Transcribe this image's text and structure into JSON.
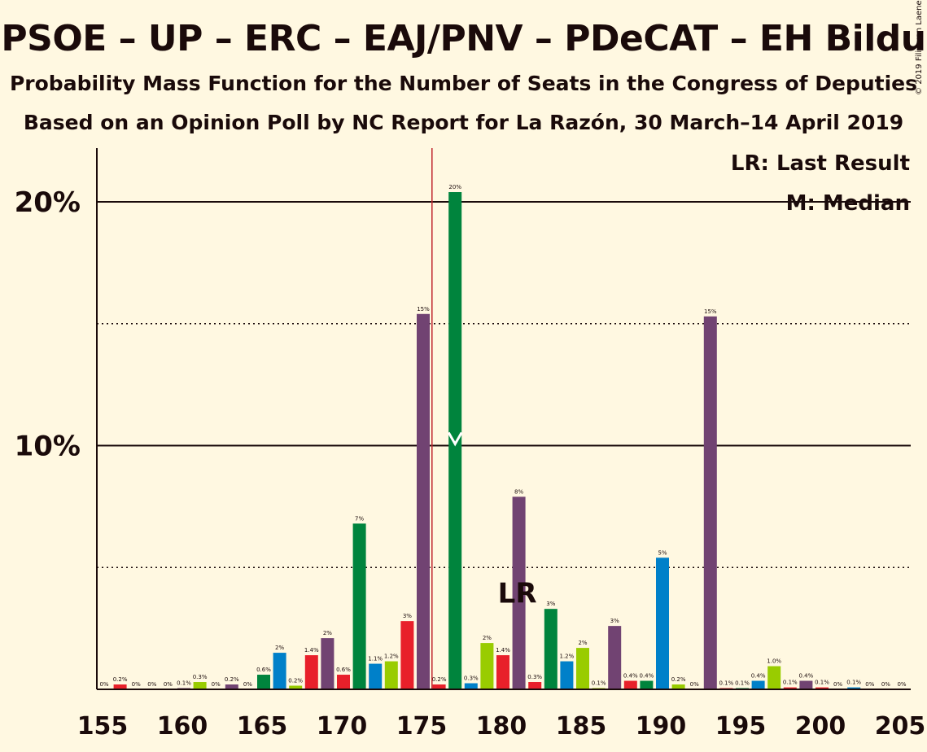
{
  "title": "PSOE – UP – ERC – EAJ/PNV – PDeCAT – EH Bildu",
  "subtitle1": "Probability Mass Function for the Number of Seats in the Congress of Deputies",
  "subtitle2": "Based on an Opinion Poll by NC Report for La Razón, 30 March–14 April 2019",
  "copyright": "© 2019 Filip van Laenen",
  "legend": {
    "lr": "LR: Last Result",
    "median": "M: Median"
  },
  "lr_label": "LR",
  "median_marker": "M",
  "colors": {
    "background": "#fff8e1",
    "red": "#e8202a",
    "green": "#00843d",
    "blue": "#0080c9",
    "lime": "#99cc00",
    "purple": "#714372",
    "lastresult_line": "#c0262d"
  },
  "chart_data": {
    "type": "bar",
    "xlim": [
      155,
      205
    ],
    "ylim": [
      0,
      22
    ],
    "y_ticks": [
      10,
      20
    ],
    "y_tick_labels": [
      "10%",
      "20%"
    ],
    "y_dotted_gridlines": [
      5,
      15
    ],
    "x_ticks": [
      155,
      160,
      165,
      170,
      175,
      180,
      185,
      190,
      195,
      200,
      205
    ],
    "last_result": 176,
    "median": 177,
    "bars": [
      {
        "x": 155,
        "value": 0,
        "label": "0%",
        "color": "red"
      },
      {
        "x": 156,
        "value": 0.2,
        "label": "0.2%",
        "color": "red"
      },
      {
        "x": 157,
        "value": 0,
        "label": "0%",
        "color": "green"
      },
      {
        "x": 158,
        "value": 0,
        "label": "0%",
        "color": "blue"
      },
      {
        "x": 159,
        "value": 0,
        "label": "0%",
        "color": "lime"
      },
      {
        "x": 160,
        "value": 0.05,
        "label": "0.1%",
        "color": "purple"
      },
      {
        "x": 161,
        "value": 0.3,
        "label": "0.3%",
        "color": "lime"
      },
      {
        "x": 162,
        "value": 0,
        "label": "0%",
        "color": "lime"
      },
      {
        "x": 163,
        "value": 0.2,
        "label": "0.2%",
        "color": "purple"
      },
      {
        "x": 164,
        "value": 0,
        "label": "0%",
        "color": "red"
      },
      {
        "x": 165,
        "value": 0.6,
        "label": "0.6%",
        "color": "green"
      },
      {
        "x": 166,
        "value": 1.5,
        "label": "2%",
        "color": "blue"
      },
      {
        "x": 167,
        "value": 0.15,
        "label": "0.2%",
        "color": "lime"
      },
      {
        "x": 168,
        "value": 1.4,
        "label": "1.4%",
        "color": "red"
      },
      {
        "x": 169,
        "value": 2.1,
        "label": "2%",
        "color": "purple"
      },
      {
        "x": 170,
        "value": 0.6,
        "label": "0.6%",
        "color": "red"
      },
      {
        "x": 171,
        "value": 6.8,
        "label": "7%",
        "color": "green"
      },
      {
        "x": 172,
        "value": 1.05,
        "label": "1.1%",
        "color": "blue"
      },
      {
        "x": 173,
        "value": 1.15,
        "label": "1.2%",
        "color": "lime"
      },
      {
        "x": 174,
        "value": 2.8,
        "label": "3%",
        "color": "red"
      },
      {
        "x": 175,
        "value": 15.4,
        "label": "15%",
        "color": "purple"
      },
      {
        "x": 176,
        "value": 0.2,
        "label": "0.2%",
        "color": "red"
      },
      {
        "x": 177,
        "value": 20.4,
        "label": "20%",
        "color": "green"
      },
      {
        "x": 178,
        "value": 0.25,
        "label": "0.3%",
        "color": "blue"
      },
      {
        "x": 179,
        "value": 1.9,
        "label": "2%",
        "color": "lime"
      },
      {
        "x": 180,
        "value": 1.4,
        "label": "1.4%",
        "color": "red"
      },
      {
        "x": 181,
        "value": 7.9,
        "label": "8%",
        "color": "purple"
      },
      {
        "x": 182,
        "value": 0.3,
        "label": "0.3%",
        "color": "red"
      },
      {
        "x": 183,
        "value": 3.3,
        "label": "3%",
        "color": "green"
      },
      {
        "x": 184,
        "value": 1.15,
        "label": "1.2%",
        "color": "blue"
      },
      {
        "x": 185,
        "value": 1.7,
        "label": "2%",
        "color": "lime"
      },
      {
        "x": 186,
        "value": 0.05,
        "label": "0.1%",
        "color": "lime"
      },
      {
        "x": 187,
        "value": 2.6,
        "label": "3%",
        "color": "purple"
      },
      {
        "x": 188,
        "value": 0.35,
        "label": "0.4%",
        "color": "red"
      },
      {
        "x": 189,
        "value": 0.35,
        "label": "0.4%",
        "color": "green"
      },
      {
        "x": 190,
        "value": 5.4,
        "label": "5%",
        "color": "blue"
      },
      {
        "x": 191,
        "value": 0.2,
        "label": "0.2%",
        "color": "lime"
      },
      {
        "x": 192,
        "value": 0,
        "label": "0%",
        "color": "lime"
      },
      {
        "x": 193,
        "value": 15.3,
        "label": "15%",
        "color": "purple"
      },
      {
        "x": 194,
        "value": 0.05,
        "label": "0.1%",
        "color": "red"
      },
      {
        "x": 195,
        "value": 0.05,
        "label": "0.1%",
        "color": "green"
      },
      {
        "x": 196,
        "value": 0.35,
        "label": "0.4%",
        "color": "blue"
      },
      {
        "x": 197,
        "value": 0.95,
        "label": "1.0%",
        "color": "lime"
      },
      {
        "x": 198,
        "value": 0.08,
        "label": "0.1%",
        "color": "red"
      },
      {
        "x": 199,
        "value": 0.35,
        "label": "0.4%",
        "color": "purple"
      },
      {
        "x": 200,
        "value": 0.08,
        "label": "0.1%",
        "color": "red"
      },
      {
        "x": 201,
        "value": 0,
        "label": "0%",
        "color": "green"
      },
      {
        "x": 202,
        "value": 0.08,
        "label": "0.1%",
        "color": "blue"
      },
      {
        "x": 203,
        "value": 0,
        "label": "0%",
        "color": "lime"
      },
      {
        "x": 204,
        "value": 0,
        "label": "0%",
        "color": "purple"
      },
      {
        "x": 205,
        "value": 0,
        "label": "0%",
        "color": "red"
      }
    ]
  }
}
